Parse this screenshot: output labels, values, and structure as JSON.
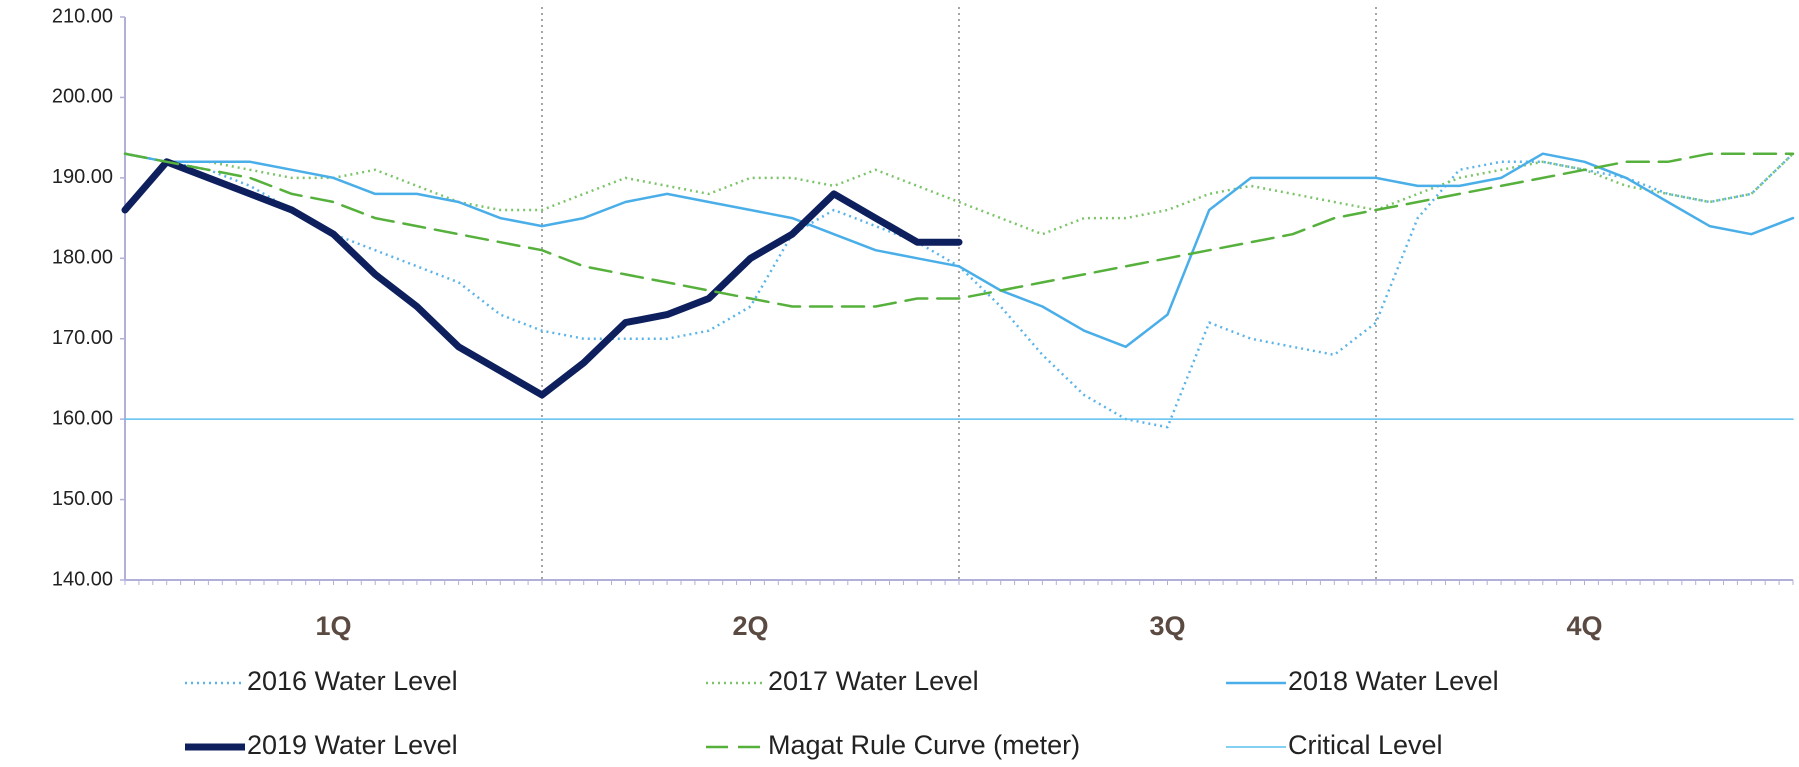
{
  "chart_data": {
    "type": "line",
    "categories": [
      "1Q",
      "2Q",
      "3Q",
      "4Q"
    ],
    "x": [
      0,
      0.1,
      0.2,
      0.3,
      0.4,
      0.5,
      0.6,
      0.7,
      0.8,
      0.9,
      1,
      1.1,
      1.2,
      1.3,
      1.4,
      1.5,
      1.6,
      1.7,
      1.8,
      1.9,
      2,
      2.1,
      2.2,
      2.3,
      2.4,
      2.5,
      2.6,
      2.7,
      2.8,
      2.9,
      3,
      3.1,
      3.2,
      3.3,
      3.4,
      3.5,
      3.6,
      3.7,
      3.8,
      3.9,
      4
    ],
    "xlim": [
      0,
      4
    ],
    "ylim": [
      140,
      210
    ],
    "yticks": [
      {
        "value": 140,
        "label": "140.00"
      },
      {
        "value": 150,
        "label": "150.00"
      },
      {
        "value": 160,
        "label": "160.00"
      },
      {
        "value": 170,
        "label": "170.00"
      },
      {
        "value": 180,
        "label": "180.00"
      },
      {
        "value": 190,
        "label": "190.00"
      },
      {
        "value": 200,
        "label": "200.00"
      },
      {
        "value": 210,
        "label": "210.00"
      }
    ],
    "series": [
      {
        "name": "2016 Water Level",
        "color": "#5ab4e8",
        "style": "dotted",
        "width": 2.5,
        "values": [
          193,
          192,
          191,
          189,
          186,
          183,
          181,
          179,
          177,
          173,
          171,
          170,
          170,
          170,
          171,
          174,
          183,
          186,
          184,
          182,
          179,
          174,
          168,
          163,
          160,
          159,
          172,
          170,
          169,
          168,
          172,
          185,
          191,
          192,
          192,
          191,
          190,
          188,
          187,
          188,
          193
        ]
      },
      {
        "name": "2017 Water Level",
        "color": "#7cc46a",
        "style": "dotted",
        "width": 2.5,
        "values": [
          193,
          192,
          192,
          191,
          190,
          190,
          191,
          189,
          187,
          186,
          186,
          188,
          190,
          189,
          188,
          190,
          190,
          189,
          191,
          189,
          187,
          185,
          183,
          185,
          185,
          186,
          188,
          189,
          188,
          187,
          186,
          188,
          190,
          191,
          192,
          191,
          189,
          188,
          187,
          188,
          193
        ]
      },
      {
        "name": "2018 Water Level",
        "color": "#4aaee8",
        "style": "solid",
        "width": 2.5,
        "values": [
          193,
          192,
          192,
          192,
          191,
          190,
          188,
          188,
          187,
          185,
          184,
          185,
          187,
          188,
          187,
          186,
          185,
          183,
          181,
          180,
          179,
          176,
          174,
          171,
          169,
          173,
          186,
          190,
          190,
          190,
          190,
          189,
          189,
          190,
          193,
          192,
          190,
          187,
          184,
          183,
          185
        ]
      },
      {
        "name": "2019 Water Level",
        "color": "#0d1f5c",
        "style": "solid",
        "width": 7,
        "values": [
          186,
          192,
          190,
          188,
          186,
          183,
          178,
          174,
          169,
          166,
          163,
          167,
          172,
          173,
          175,
          180,
          183,
          188,
          185,
          182,
          182,
          null,
          null,
          null,
          null,
          null,
          null,
          null,
          null,
          null,
          null,
          null,
          null,
          null,
          null,
          null,
          null,
          null,
          null,
          null,
          null
        ]
      },
      {
        "name": "Magat Rule Curve (meter)",
        "color": "#56b03c",
        "style": "dashed",
        "width": 2.5,
        "values": [
          193,
          192,
          191,
          190,
          188,
          187,
          185,
          184,
          183,
          182,
          181,
          179,
          178,
          177,
          176,
          175,
          174,
          174,
          174,
          175,
          175,
          176,
          177,
          178,
          179,
          180,
          181,
          182,
          183,
          185,
          186,
          187,
          188,
          189,
          190,
          191,
          192,
          192,
          193,
          193,
          193
        ]
      },
      {
        "name": "Critical Level",
        "color": "#5cc0f0",
        "style": "solid",
        "width": 1.5,
        "hline": 160
      }
    ]
  }
}
